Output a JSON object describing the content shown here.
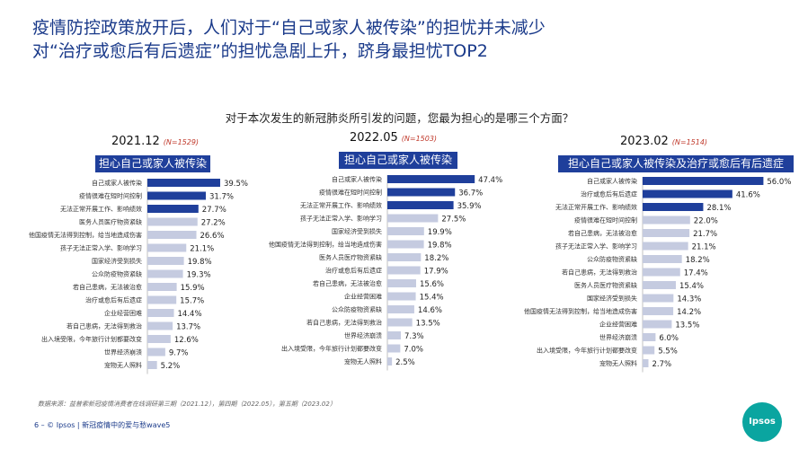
{
  "title": "疫情防控政策放开后，人们对于“自己或家人被传染”的担忧并未减少\n对“治疗或愈后有后遗症”的担忧急剧上升，跻身最担忧TOP2",
  "subtitle": "对于本次发生的新冠肺炎所引发的问题，您最为担心的是哪三个方面？",
  "footer": {
    "source": "数据来源：益普索新冠疫情消费者在线调研第三期（2021.12），第四期（2022.05），第五期（2023.02）",
    "page": "6 –  © Ipsos | 新冠疫情中的爱与愁wave5",
    "logo": "Ipsos"
  },
  "colors": {
    "highlight": "#1f3f9b",
    "bar": "#c5cbe0",
    "label_bg": "#1f3f9b"
  },
  "chart_data": [
    {
      "type": "bar",
      "orientation": "horizontal",
      "period": "2021.12",
      "sample": "(N=1529)",
      "panel_label": "担心自己或家人被传染",
      "highlight_count": 3,
      "categories": [
        "自己或家人被传染",
        "疫情很难在短时间控制",
        "无法正常开展工作、影响绩效",
        "医务人员医疗物资紧缺",
        "他国疫情无法得到控制，给当地造成伤害",
        "孩子无法正常入学、影响学习",
        "国家经济受到损失",
        "公众防疫物资紧缺",
        "若自己患病，无法被治愈",
        "治疗或愈后有后遗症",
        "企业经营困难",
        "若自己患病，无法得到救治",
        "出入境受限，今年旅行计划都要改变",
        "世界经济崩溃",
        "宠物无人照料"
      ],
      "values": [
        39.5,
        31.7,
        27.7,
        27.2,
        26.6,
        21.1,
        19.8,
        19.3,
        15.9,
        15.7,
        14.4,
        13.7,
        12.6,
        9.7,
        5.2
      ],
      "xlim": [
        0,
        60
      ]
    },
    {
      "type": "bar",
      "orientation": "horizontal",
      "period": "2022.05",
      "sample": "(N=1503)",
      "panel_label": "担心自己或家人被传染",
      "highlight_count": 3,
      "categories": [
        "自己或家人被传染",
        "疫情很难在短时间控制",
        "无法正常开展工作、影响绩效",
        "孩子无法正常入学、影响学习",
        "国家经济受到损失",
        "他国疫情无法得到控制，给当地造成伤害",
        "医务人员医疗物资紧缺",
        "治疗或愈后有后遗症",
        "若自己患病，无法被治愈",
        "企业经营困难",
        "公众防疫物资紧缺",
        "若自己患病，无法得到救治",
        "世界经济崩溃",
        "出入境受限，今年旅行计划都要改变",
        "宠物无人照料"
      ],
      "values": [
        47.4,
        36.7,
        35.9,
        27.5,
        19.9,
        19.8,
        18.2,
        17.9,
        15.6,
        15.4,
        14.6,
        13.5,
        7.3,
        7.0,
        2.5
      ],
      "xlim": [
        0,
        60
      ]
    },
    {
      "type": "bar",
      "orientation": "horizontal",
      "period": "2023.02",
      "sample": "(N=1514)",
      "panel_label": "担心自己或家人被传染及治疗或愈后有后遗症",
      "highlight_count": 3,
      "categories": [
        "自己或家人被传染",
        "治疗或愈后有后遗症",
        "无法正常开展工作、影响绩效",
        "疫情很难在短时间控制",
        "若自己患病，无法被治愈",
        "孩子无法正常入学、影响学习",
        "公众防疫物资紧缺",
        "若自己患病，无法得到救治",
        "医务人员医疗物资紧缺",
        "国家经济受到损失",
        "他国疫情无法得到控制，给当地造成伤害",
        "企业经营困难",
        "世界经济崩溃",
        "出入境受限，今年旅行计划都要改变",
        "宠物无人照料"
      ],
      "values": [
        56.0,
        41.6,
        28.1,
        22.0,
        21.7,
        21.1,
        18.2,
        17.4,
        15.4,
        14.3,
        14.2,
        13.5,
        6.0,
        5.5,
        2.7
      ],
      "xlim": [
        0,
        60
      ]
    }
  ]
}
